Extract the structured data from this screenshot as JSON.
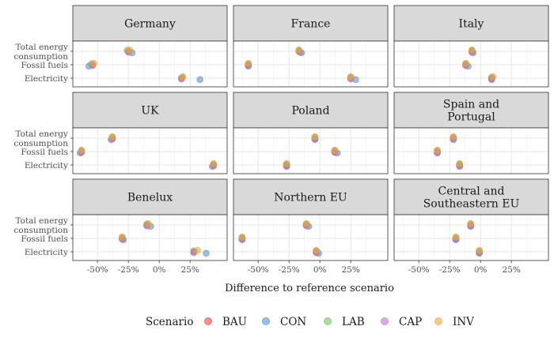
{
  "chart_data": {
    "type": "scatter",
    "xlabel": "Difference to reference scenario",
    "x_ticks": [
      {
        "value": -0.5,
        "label": "-50%"
      },
      {
        "value": -0.25,
        "label": "-25%"
      },
      {
        "value": 0,
        "label": "0%"
      },
      {
        "value": 0.25,
        "label": "25%"
      }
    ],
    "xlim": [
      -0.7,
      0.55
    ],
    "categories": [
      "Total energy\nconsumption",
      "Fossil fuels",
      "Electricity"
    ],
    "grid": true,
    "legend": {
      "title": "Scenario",
      "placement": "bottom"
    },
    "series": [
      {
        "name": "BAU",
        "color": "#e8474b"
      },
      {
        "name": "CON",
        "color": "#5b93c8"
      },
      {
        "name": "LAB",
        "color": "#72c464"
      },
      {
        "name": "CAP",
        "color": "#b57bc6"
      },
      {
        "name": "INV",
        "color": "#f4a43a"
      }
    ],
    "panels": [
      {
        "title": "Germany",
        "values": {
          "Total energy\nconsumption": [
            -0.25,
            -0.22,
            -0.26,
            -0.25,
            -0.24
          ],
          "Fossil fuels": [
            -0.54,
            -0.57,
            -0.55,
            -0.54,
            -0.53
          ],
          "Electricity": [
            0.18,
            0.33,
            0.19,
            0.18,
            0.19
          ]
        }
      },
      {
        "title": "France",
        "values": {
          "Total energy\nconsumption": [
            -0.17,
            -0.15,
            -0.17,
            -0.16,
            -0.17
          ],
          "Fossil fuels": [
            -0.58,
            -0.58,
            -0.58,
            -0.58,
            -0.58
          ],
          "Electricity": [
            0.25,
            0.29,
            0.25,
            0.25,
            0.25
          ]
        }
      },
      {
        "title": "Italy",
        "values": {
          "Total energy\nconsumption": [
            -0.07,
            -0.06,
            -0.07,
            -0.07,
            -0.07
          ],
          "Fossil fuels": [
            -0.12,
            -0.1,
            -0.12,
            -0.12,
            -0.12
          ],
          "Electricity": [
            0.09,
            0.09,
            0.09,
            0.09,
            0.1
          ]
        }
      },
      {
        "title": "UK",
        "values": {
          "Total energy\nconsumption": [
            -0.38,
            -0.39,
            -0.38,
            -0.38,
            -0.38
          ],
          "Fossil fuels": [
            -0.63,
            -0.64,
            -0.63,
            -0.63,
            -0.63
          ],
          "Electricity": [
            0.44,
            0.43,
            0.44,
            0.44,
            0.44
          ]
        }
      },
      {
        "title": "Poland",
        "values": {
          "Total energy\nconsumption": [
            -0.04,
            -0.04,
            -0.04,
            -0.04,
            -0.04
          ],
          "Fossil fuels": [
            0.12,
            0.14,
            0.12,
            0.12,
            0.12
          ],
          "Electricity": [
            -0.27,
            -0.27,
            -0.27,
            -0.27,
            -0.27
          ]
        }
      },
      {
        "title": "Spain and\nPortugal",
        "values": {
          "Total energy\nconsumption": [
            -0.22,
            -0.22,
            -0.22,
            -0.22,
            -0.22
          ],
          "Fossil fuels": [
            -0.35,
            -0.35,
            -0.35,
            -0.35,
            -0.35
          ],
          "Electricity": [
            -0.17,
            -0.17,
            -0.17,
            -0.17,
            -0.17
          ]
        }
      },
      {
        "title": "Benelux",
        "values": {
          "Total energy\nconsumption": [
            -0.1,
            -0.07,
            -0.1,
            -0.1,
            -0.09
          ],
          "Fossil fuels": [
            -0.3,
            -0.29,
            -0.3,
            -0.3,
            -0.3
          ],
          "Electricity": [
            0.28,
            0.38,
            0.28,
            0.28,
            0.31
          ]
        }
      },
      {
        "title": "Northern EU",
        "values": {
          "Total energy\nconsumption": [
            -0.11,
            -0.09,
            -0.11,
            -0.11,
            -0.11
          ],
          "Fossil fuels": [
            -0.63,
            -0.63,
            -0.63,
            -0.63,
            -0.63
          ],
          "Electricity": [
            -0.03,
            -0.01,
            -0.03,
            -0.03,
            -0.03
          ]
        }
      },
      {
        "title": "Central and\nSoutheastern EU",
        "values": {
          "Total energy\nconsumption": [
            -0.08,
            -0.08,
            -0.08,
            -0.08,
            -0.08
          ],
          "Fossil fuels": [
            -0.2,
            -0.2,
            -0.2,
            -0.2,
            -0.2
          ],
          "Electricity": [
            -0.01,
            -0.01,
            -0.01,
            -0.01,
            -0.01
          ]
        }
      }
    ]
  }
}
